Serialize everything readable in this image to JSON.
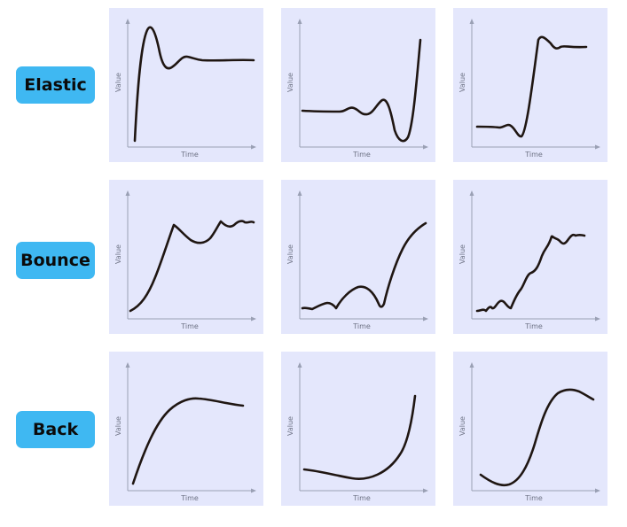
{
  "rows": [
    {
      "label": "Elastic"
    },
    {
      "label": "Bounce"
    },
    {
      "label": "Back"
    }
  ],
  "axes": {
    "x_label": "Time",
    "y_label": "Value"
  },
  "colors": {
    "label_bg": "#3fb8f2",
    "panel_bg": "#e4e7fc",
    "axis": "#9aa0b4",
    "curve": "#1f1612"
  }
}
